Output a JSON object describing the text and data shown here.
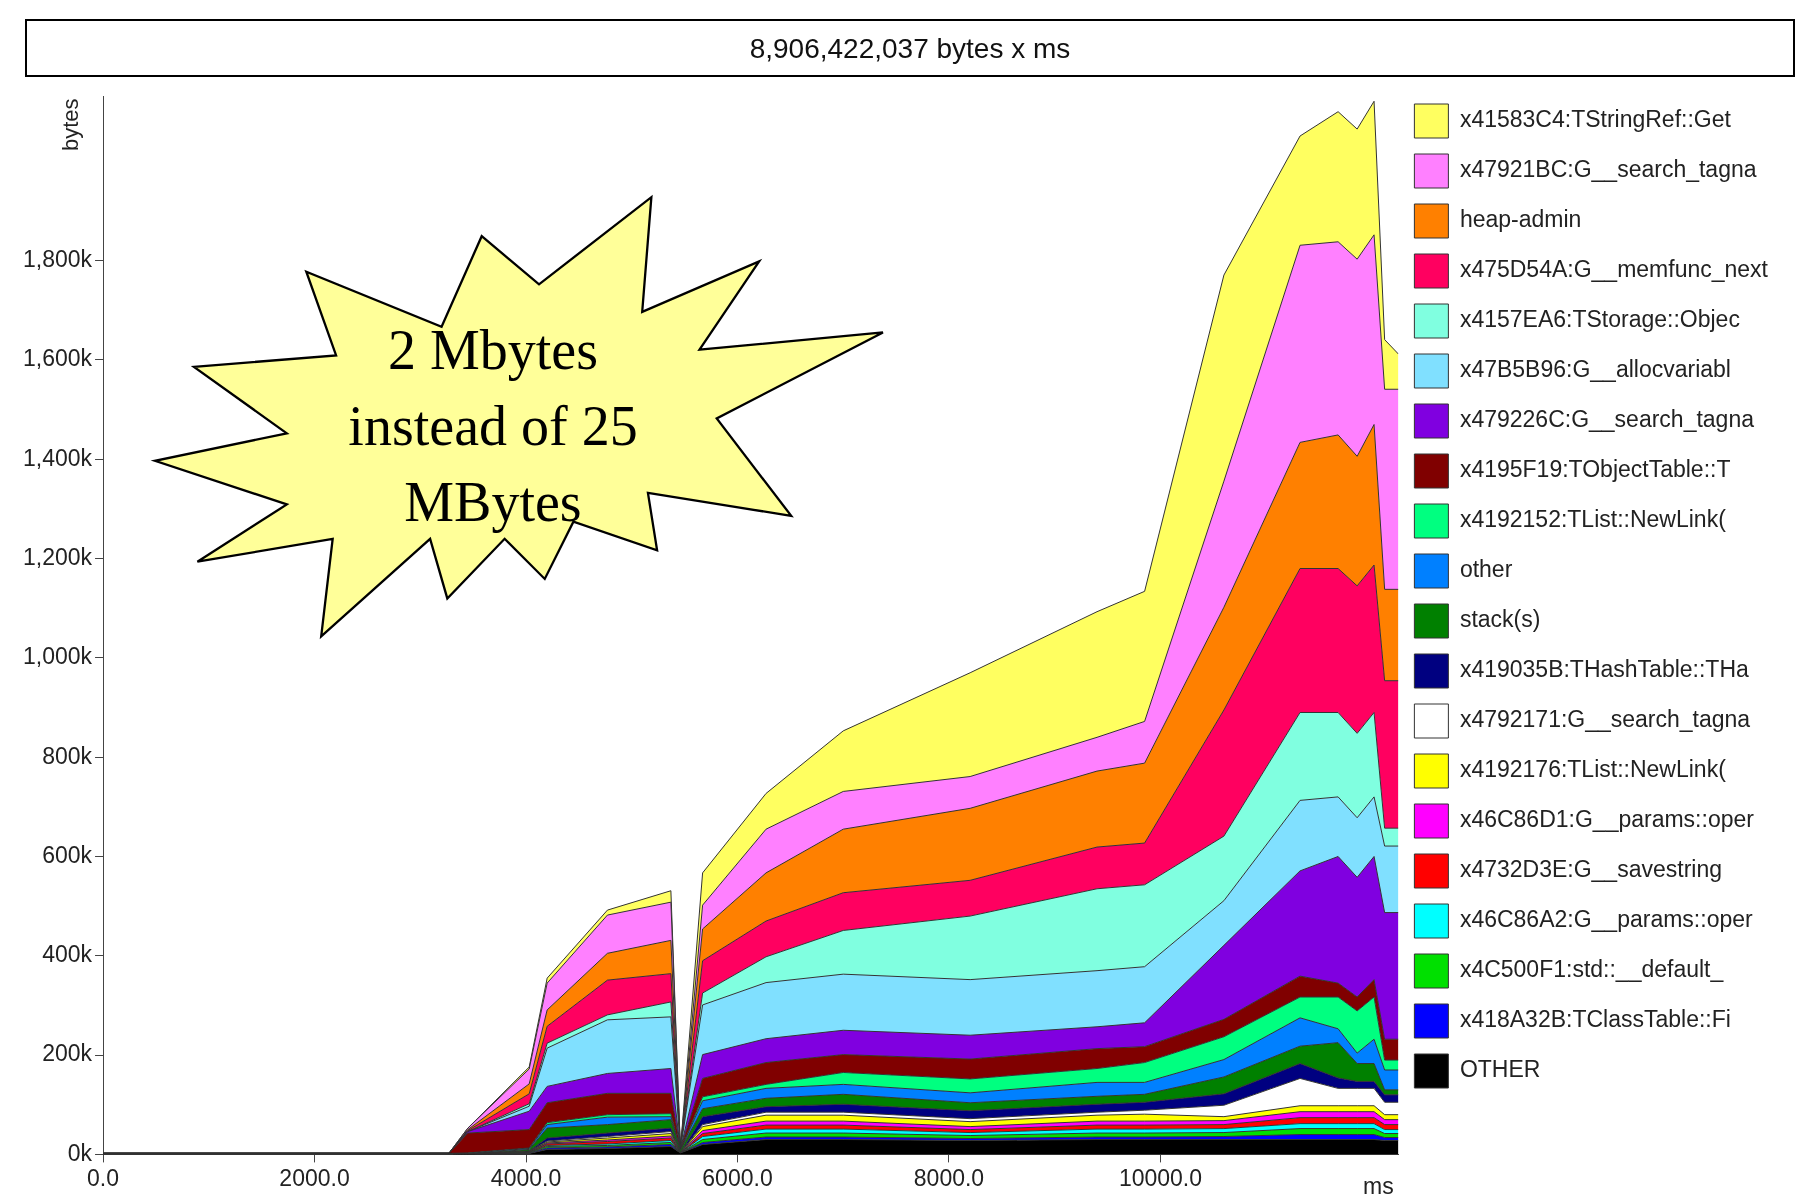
{
  "chart_data": {
    "type": "area",
    "title": "8,906,422,037 bytes x ms",
    "ylabel": "bytes",
    "xlabel": "ms",
    "stacked": true,
    "grid": false,
    "legend": "right",
    "marker": "none",
    "annotations": [
      "2 Mbytes instead of 25 MBytes"
    ],
    "x": [
      0,
      3270,
      3450,
      4030,
      4200,
      4770,
      5370,
      5460,
      5670,
      6270,
      7000,
      8200,
      9400,
      9850,
      10600,
      11320,
      11680,
      11860,
      12020,
      12120,
      12250
    ],
    "xlim": [
      0,
      12250
    ],
    "xticks": [
      {
        "value": 0,
        "label": "0.0"
      },
      {
        "value": 2000,
        "label": "2000.0"
      },
      {
        "value": 4000,
        "label": "4000.0"
      },
      {
        "value": 6000,
        "label": "6000.0"
      },
      {
        "value": 8000,
        "label": "8000.0"
      },
      {
        "value": 10000,
        "label": "10000.0"
      }
    ],
    "ylim": [
      0,
      2130
    ],
    "yticks": [
      {
        "value": 0,
        "label": "0k"
      },
      {
        "value": 200,
        "label": "200k"
      },
      {
        "value": 400,
        "label": "400k"
      },
      {
        "value": 600,
        "label": "600k"
      },
      {
        "value": 800,
        "label": "800k"
      },
      {
        "value": 1000,
        "label": "1,000k"
      },
      {
        "value": 1200,
        "label": "1,200k"
      },
      {
        "value": 1400,
        "label": "1,400k"
      },
      {
        "value": 1600,
        "label": "1,600k"
      },
      {
        "value": 1800,
        "label": "1,800k"
      }
    ],
    "series": [
      {
        "name": "OTHER",
        "color": "#000000",
        "values": [
          2,
          2,
          1,
          2,
          10,
          12,
          16,
          3,
          20,
          30,
          30,
          28,
          30,
          30,
          30,
          30,
          30,
          30,
          30,
          28,
          28
        ]
      },
      {
        "name": "x418A32B:TClassTable::Fi",
        "color": "#0000ff",
        "values": [
          0,
          0,
          0,
          1,
          3,
          3,
          4,
          0,
          4,
          5,
          5,
          4,
          5,
          5,
          6,
          10,
          10,
          10,
          10,
          6,
          6
        ]
      },
      {
        "name": "x4C500F1:std::__default_",
        "color": "#00e000",
        "values": [
          0,
          0,
          0,
          1,
          3,
          3,
          4,
          0,
          6,
          8,
          8,
          6,
          8,
          8,
          8,
          12,
          12,
          12,
          12,
          8,
          8
        ]
      },
      {
        "name": "x46C86A2:G__params::oper",
        "color": "#00ffff",
        "values": [
          0,
          0,
          0,
          0,
          2,
          3,
          4,
          0,
          6,
          8,
          8,
          6,
          8,
          8,
          8,
          10,
          10,
          10,
          10,
          8,
          8
        ]
      },
      {
        "name": "x4732D3E:G__savestring",
        "color": "#ff0000",
        "values": [
          0,
          0,
          0,
          1,
          3,
          5,
          5,
          0,
          6,
          8,
          8,
          6,
          8,
          8,
          8,
          12,
          12,
          12,
          12,
          10,
          10
        ]
      },
      {
        "name": "x46C86D1:G__params::oper",
        "color": "#ff00ff",
        "values": [
          0,
          0,
          0,
          0,
          2,
          3,
          4,
          0,
          6,
          8,
          8,
          6,
          8,
          8,
          8,
          12,
          12,
          12,
          12,
          10,
          10
        ]
      },
      {
        "name": "x4192176:TList::NewLink(",
        "color": "#ffff00",
        "values": [
          0,
          0,
          0,
          1,
          2,
          4,
          5,
          0,
          8,
          12,
          12,
          10,
          12,
          14,
          8,
          12,
          12,
          12,
          12,
          10,
          10
        ]
      },
      {
        "name": "x4792171:G__search_tagna",
        "color": "#ffffff",
        "values": [
          0,
          0,
          0,
          0,
          2,
          3,
          4,
          0,
          4,
          6,
          6,
          6,
          6,
          8,
          23,
          55,
          35,
          35,
          35,
          25,
          25
        ]
      },
      {
        "name": "x419035B:THashTable::THa",
        "color": "#000080",
        "values": [
          0,
          0,
          0,
          1,
          6,
          7,
          7,
          0,
          16,
          11,
          16,
          16,
          16,
          16,
          23,
          30,
          21,
          14,
          14,
          15,
          15
        ]
      },
      {
        "name": "stack(s)",
        "color": "#008000",
        "values": [
          0,
          0,
          0,
          3,
          20,
          17,
          17,
          5,
          16,
          17,
          20,
          16,
          16,
          16,
          34,
          35,
          71,
          36,
          36,
          10,
          10
        ]
      },
      {
        "name": "other",
        "color": "#0080ff",
        "values": [
          0,
          0,
          1,
          2,
          7,
          15,
          6,
          0,
          16,
          20,
          20,
          20,
          28,
          24,
          35,
          57,
          28,
          21,
          49,
          40,
          40
        ]
      },
      {
        "name": "x4192152:TList::NewLink(",
        "color": "#00ff80",
        "values": [
          0,
          0,
          1,
          1,
          4,
          5,
          6,
          0,
          8,
          8,
          24,
          28,
          28,
          40,
          46,
          42,
          64,
          85,
          85,
          20,
          20
        ]
      },
      {
        "name": "x4195F19:TObjectTable::T",
        "color": "#800000",
        "values": [
          0,
          0,
          40,
          37,
          40,
          43,
          41,
          2,
          37,
          44,
          36,
          40,
          40,
          32,
          35,
          42,
          28,
          28,
          35,
          42,
          42
        ]
      },
      {
        "name": "x479226C:G__search_tagna",
        "color": "#8000e0",
        "values": [
          0,
          0,
          3,
          37,
          33,
          40,
          50,
          0,
          48,
          48,
          49,
          48,
          44,
          48,
          149,
          212,
          255,
          241,
          248,
          255,
          255
        ]
      },
      {
        "name": "x47B5B96:G__allocvariabl",
        "color": "#80e0ff",
        "values": [
          0,
          0,
          0,
          10,
          77,
          108,
          104,
          0,
          100,
          113,
          113,
          112,
          113,
          113,
          90,
          142,
          120,
          120,
          120,
          134,
          134
        ]
      },
      {
        "name": "x4157EA6:TStorage::Objec",
        "color": "#80ffe0",
        "values": [
          0,
          0,
          0,
          5,
          10,
          10,
          30,
          0,
          24,
          52,
          88,
          128,
          165,
          165,
          130,
          177,
          170,
          170,
          170,
          36,
          36
        ]
      },
      {
        "name": "x475D54A:G__memfunc_next",
        "color": "#ff0060",
        "values": [
          0,
          0,
          2,
          20,
          34,
          70,
          57,
          0,
          65,
          72,
          76,
          72,
          84,
          84,
          254,
          290,
          290,
          297,
          297,
          297,
          297
        ]
      },
      {
        "name": "heap-admin",
        "color": "#ff8000",
        "values": [
          0,
          0,
          2,
          20,
          33,
          54,
          67,
          0,
          64,
          97,
          128,
          145,
          153,
          161,
          207,
          254,
          269,
          261,
          283,
          184,
          184
        ]
      },
      {
        "name": "x47921BC:G__search_tagna",
        "color": "#ff80ff",
        "values": [
          0,
          0,
          3,
          30,
          54,
          77,
          77,
          0,
          48,
          88,
          76,
          64,
          68,
          84,
          254,
          397,
          389,
          397,
          382,
          403,
          403
        ]
      },
      {
        "name": "x41583C4:TStringRef::Get",
        "color": "#ffff60",
        "values": [
          0,
          0,
          0,
          4,
          10,
          10,
          23,
          0,
          65,
          72,
          122,
          209,
          253,
          262,
          415,
          220,
          262,
          262,
          269,
          100,
          71
        ]
      }
    ]
  }
}
